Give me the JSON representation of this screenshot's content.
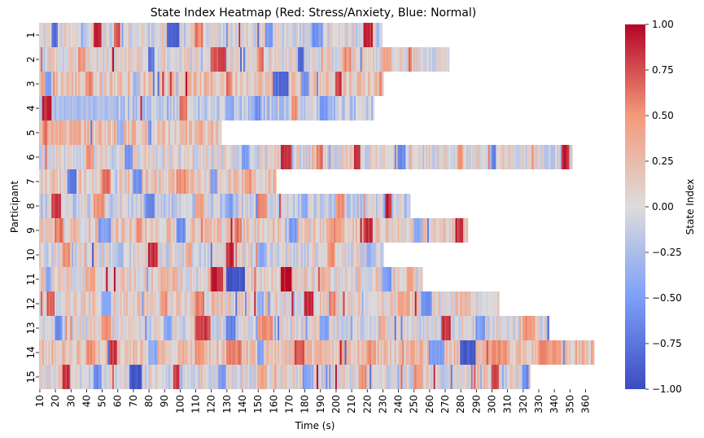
{
  "chart_data": {
    "type": "heatmap",
    "title": "State Index Heatmap (Red: Stress/Anxiety, Blue: Normal)",
    "xlabel": "Time (s)",
    "ylabel": "Participant",
    "colorbar_label": "State Index",
    "colormap": "coolwarm",
    "vmin": -1.0,
    "vmax": 1.0,
    "colorbar_ticks": [
      "1.00",
      "0.75",
      "0.50",
      "0.25",
      "0.00",
      "−0.25",
      "−0.50",
      "−0.75",
      "−1.00"
    ],
    "time_start": 10,
    "time_step": 1,
    "x_tick_labels": [
      "10",
      "20",
      "30",
      "40",
      "50",
      "60",
      "70",
      "80",
      "90",
      "100",
      "110",
      "120",
      "130",
      "140",
      "150",
      "160",
      "170",
      "180",
      "190",
      "200",
      "210",
      "220",
      "230",
      "240",
      "250",
      "260",
      "270",
      "280",
      "290",
      "300",
      "310",
      "320",
      "330",
      "340",
      "350",
      "360"
    ],
    "participants": [
      {
        "label": "1",
        "end_time": 230,
        "base": 0.0,
        "events": [
          [
            18,
            22,
            -0.8
          ],
          [
            45,
            50,
            0.85
          ],
          [
            58,
            62,
            0.7
          ],
          [
            92,
            100,
            -0.9
          ],
          [
            110,
            115,
            0.6
          ],
          [
            155,
            160,
            -0.5
          ],
          [
            185,
            192,
            -0.55
          ],
          [
            218,
            224,
            0.9
          ]
        ]
      },
      {
        "label": "2",
        "end_time": 273,
        "base": 0.05,
        "events": [
          [
            35,
            40,
            0.5
          ],
          [
            80,
            84,
            -0.7
          ],
          [
            120,
            130,
            0.75
          ],
          [
            150,
            154,
            0.6
          ],
          [
            176,
            180,
            -0.8
          ],
          [
            205,
            210,
            0.5
          ],
          [
            230,
            236,
            0.4
          ]
        ]
      },
      {
        "label": "3",
        "end_time": 231,
        "base": 0.2,
        "events": [
          [
            14,
            18,
            -0.5
          ],
          [
            40,
            45,
            0.55
          ],
          [
            70,
            74,
            -0.3
          ],
          [
            130,
            134,
            0.6
          ],
          [
            160,
            170,
            -0.8
          ],
          [
            178,
            183,
            -0.6
          ],
          [
            200,
            204,
            0.8
          ]
        ]
      },
      {
        "label": "4",
        "end_time": 225,
        "base": -0.15,
        "events": [
          [
            12,
            18,
            0.9
          ],
          [
            18,
            60,
            -0.25
          ],
          [
            100,
            105,
            0.6
          ],
          [
            130,
            135,
            -0.4
          ],
          [
            148,
            152,
            -0.6
          ],
          [
            172,
            176,
            0.5
          ],
          [
            190,
            195,
            -0.5
          ]
        ]
      },
      {
        "label": "5",
        "end_time": 127,
        "base": 0.22,
        "events": [
          [
            12,
            16,
            0.6
          ],
          [
            30,
            36,
            0.4
          ],
          [
            60,
            64,
            -0.3
          ],
          [
            80,
            82,
            -0.6
          ],
          [
            100,
            104,
            0.3
          ]
        ]
      },
      {
        "label": "6",
        "end_time": 352,
        "base": 0.0,
        "events": [
          [
            40,
            45,
            0.5
          ],
          [
            65,
            70,
            -0.6
          ],
          [
            140,
            145,
            -0.5
          ],
          [
            165,
            172,
            0.85
          ],
          [
            188,
            192,
            0.6
          ],
          [
            212,
            216,
            0.9
          ],
          [
            240,
            245,
            -0.6
          ],
          [
            278,
            282,
            0.5
          ],
          [
            300,
            303,
            -0.7
          ],
          [
            345,
            350,
            0.9
          ]
        ]
      },
      {
        "label": "7",
        "end_time": 162,
        "base": 0.15,
        "events": [
          [
            28,
            34,
            -0.7
          ],
          [
            50,
            56,
            0.6
          ],
          [
            70,
            76,
            -0.6
          ],
          [
            98,
            104,
            0.5
          ],
          [
            120,
            124,
            -0.5
          ],
          [
            142,
            146,
            0.5
          ]
        ]
      },
      {
        "label": "8",
        "end_time": 248,
        "base": -0.1,
        "events": [
          [
            18,
            24,
            0.8
          ],
          [
            45,
            52,
            0.5
          ],
          [
            78,
            84,
            -0.6
          ],
          [
            110,
            116,
            0.4
          ],
          [
            130,
            134,
            -0.5
          ],
          [
            150,
            156,
            0.6
          ],
          [
            178,
            182,
            -0.4
          ],
          [
            200,
            206,
            0.5
          ],
          [
            232,
            236,
            0.9
          ]
        ]
      },
      {
        "label": "9",
        "end_time": 285,
        "base": 0.15,
        "events": [
          [
            20,
            26,
            0.6
          ],
          [
            48,
            56,
            -0.5
          ],
          [
            72,
            76,
            0.5
          ],
          [
            98,
            104,
            -0.6
          ],
          [
            135,
            140,
            0.6
          ],
          [
            170,
            176,
            -0.5
          ],
          [
            196,
            204,
            0.5
          ],
          [
            218,
            224,
            0.85
          ],
          [
            250,
            256,
            -0.4
          ],
          [
            278,
            282,
            0.8
          ]
        ]
      },
      {
        "label": "10",
        "end_time": 231,
        "base": 0.0,
        "events": [
          [
            25,
            30,
            0.5
          ],
          [
            60,
            64,
            -0.3
          ],
          [
            80,
            86,
            0.85
          ],
          [
            104,
            108,
            0.4
          ],
          [
            130,
            135,
            0.85
          ],
          [
            150,
            156,
            -0.4
          ],
          [
            195,
            200,
            0.5
          ],
          [
            220,
            226,
            -0.3
          ]
        ]
      },
      {
        "label": "11",
        "end_time": 256,
        "base": 0.1,
        "events": [
          [
            14,
            18,
            -0.4
          ],
          [
            40,
            46,
            0.4
          ],
          [
            88,
            94,
            0.3
          ],
          [
            120,
            128,
            0.9
          ],
          [
            130,
            142,
            -0.95
          ],
          [
            165,
            172,
            0.95
          ],
          [
            190,
            196,
            0.3
          ],
          [
            230,
            236,
            -0.5
          ],
          [
            246,
            250,
            0.5
          ]
        ]
      },
      {
        "label": "12",
        "end_time": 305,
        "base": 0.1,
        "events": [
          [
            15,
            20,
            0.7
          ],
          [
            50,
            56,
            -0.5
          ],
          [
            88,
            92,
            0.5
          ],
          [
            110,
            116,
            0.6
          ],
          [
            150,
            154,
            -0.4
          ],
          [
            180,
            186,
            0.85
          ],
          [
            196,
            200,
            0.6
          ],
          [
            240,
            248,
            0.4
          ],
          [
            255,
            262,
            -0.6
          ],
          [
            280,
            286,
            0.3
          ]
        ]
      },
      {
        "label": "13",
        "end_time": 337,
        "base": 0.0,
        "events": [
          [
            20,
            25,
            -0.6
          ],
          [
            50,
            56,
            0.5
          ],
          [
            90,
            95,
            -0.4
          ],
          [
            110,
            120,
            0.8
          ],
          [
            130,
            136,
            -0.7
          ],
          [
            150,
            160,
            0.5
          ],
          [
            190,
            196,
            -0.5
          ],
          [
            228,
            232,
            0.4
          ],
          [
            268,
            274,
            0.85
          ],
          [
            290,
            296,
            -0.5
          ],
          [
            320,
            328,
            0.5
          ]
        ]
      },
      {
        "label": "14",
        "end_time": 366,
        "base": 0.2,
        "events": [
          [
            40,
            46,
            0.5
          ],
          [
            55,
            60,
            0.8
          ],
          [
            80,
            86,
            -0.4
          ],
          [
            110,
            116,
            0.5
          ],
          [
            130,
            140,
            0.6
          ],
          [
            150,
            154,
            -0.5
          ],
          [
            175,
            180,
            0.7
          ],
          [
            220,
            226,
            0.5
          ],
          [
            260,
            270,
            -0.5
          ],
          [
            280,
            290,
            -0.9
          ],
          [
            300,
            310,
            0.5
          ],
          [
            330,
            345,
            0.5
          ]
        ]
      },
      {
        "label": "15",
        "end_time": 325,
        "base": 0.0,
        "events": [
          [
            25,
            30,
            0.85
          ],
          [
            45,
            50,
            -0.6
          ],
          [
            68,
            76,
            -0.95
          ],
          [
            96,
            100,
            0.8
          ],
          [
            125,
            130,
            -0.5
          ],
          [
            150,
            156,
            0.4
          ],
          [
            180,
            186,
            -0.4
          ],
          [
            215,
            220,
            0.5
          ],
          [
            250,
            256,
            0.5
          ],
          [
            300,
            305,
            0.8
          ],
          [
            320,
            324,
            -0.6
          ]
        ]
      }
    ]
  }
}
